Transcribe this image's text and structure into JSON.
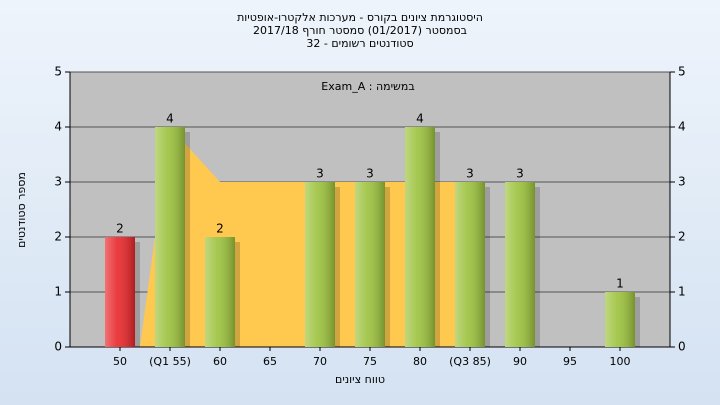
{
  "chart_data": {
    "type": "bar",
    "title": "היסטוגרמת ציונים בקורס - מערכות אלקטרו-אופטיות",
    "subtitle": "בסמסטר  (01/2017)  סמסטר חורף 2017/18",
    "subtitle2": "32 - סטודנטים רשומים",
    "annotation": "Exam_A : במשימה",
    "x_label": "טווח ציונים",
    "y_label": "מספר סטודנטים",
    "categories": [
      "50",
      "(Q1 55)",
      "60",
      "65",
      "70",
      "75",
      "80",
      "(Q3 85)",
      "90",
      "95",
      "100"
    ],
    "values": [
      2,
      4,
      2,
      0,
      3,
      3,
      4,
      3,
      3,
      0,
      1
    ],
    "colors": [
      "#e8262a",
      "#9cc23c",
      "#9cc23c",
      "#9cc23c",
      "#9cc23c",
      "#9cc23c",
      "#9cc23c",
      "#9cc23c",
      "#9cc23c",
      "#9cc23c",
      "#9cc23c"
    ],
    "area": {
      "color": "#ffc94f",
      "values": [
        null,
        4,
        3,
        3,
        3,
        3,
        3,
        3,
        null,
        null,
        null
      ]
    },
    "ylim": [
      0,
      5
    ],
    "yticks": [
      0,
      1,
      2,
      3,
      4,
      5
    ],
    "grid": true
  }
}
